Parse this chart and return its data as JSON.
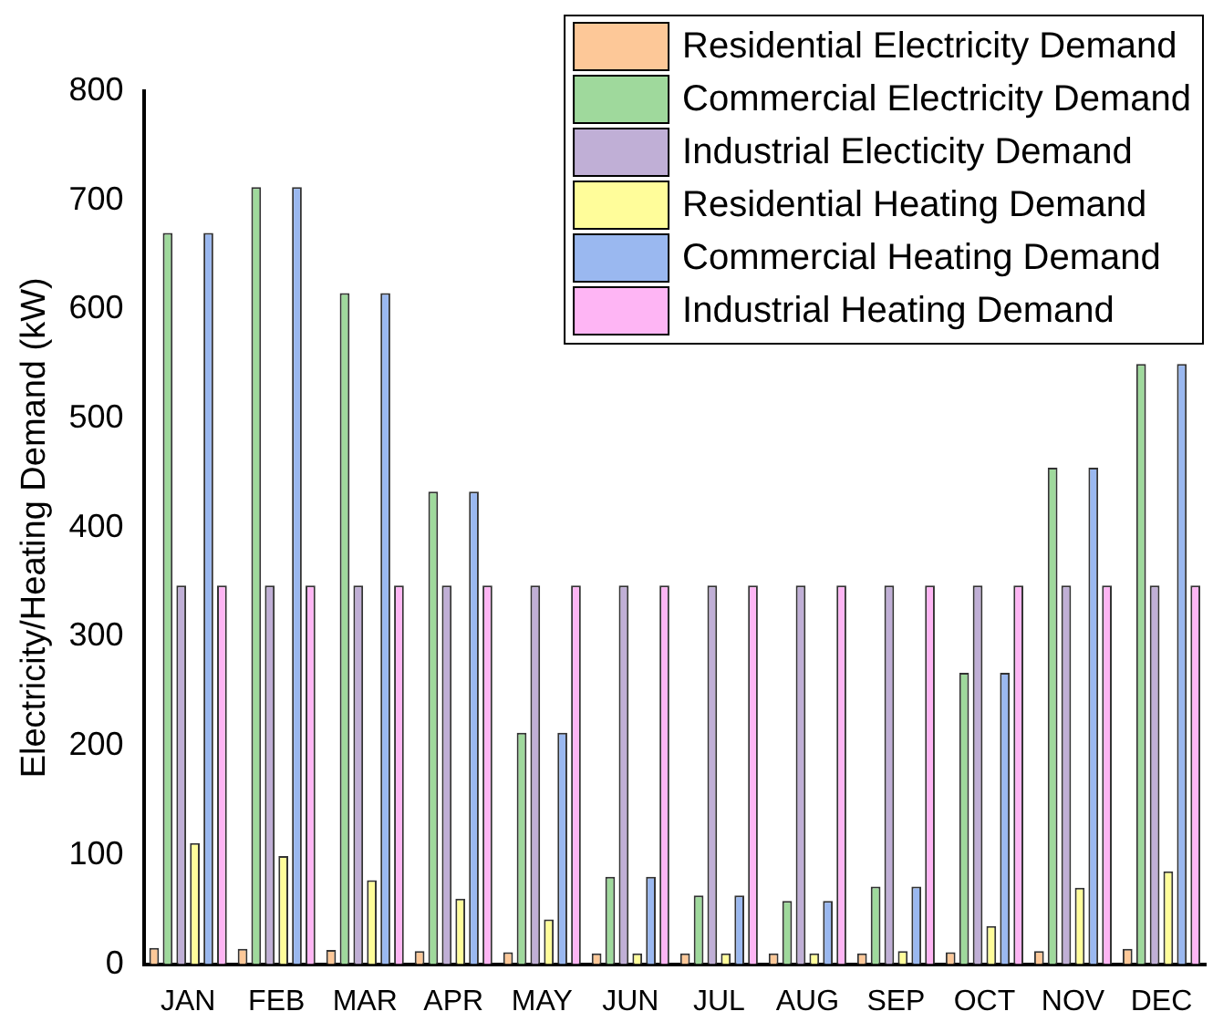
{
  "chart_data": {
    "type": "bar",
    "ylabel": "Electricity/Heating Demand (kW)",
    "categories": [
      "JAN",
      "FEB",
      "MAR",
      "APR",
      "MAY",
      "JUN",
      "JUL",
      "AUG",
      "SEP",
      "OCT",
      "NOV",
      "DEC"
    ],
    "series": [
      {
        "name": "Residential Electricity Demand",
        "color": "#fdc898",
        "values": [
          15,
          14,
          13,
          12,
          11,
          10,
          10,
          10,
          10,
          11,
          12,
          14
        ]
      },
      {
        "name": "Commercial Electricity Demand",
        "color": "#9fd99c",
        "values": [
          670,
          712,
          615,
          433,
          212,
          80,
          63,
          58,
          71,
          267,
          455,
          550
        ]
      },
      {
        "name": "Industrial Electicity Demand",
        "color": "#c0afd6",
        "values": [
          347,
          347,
          347,
          347,
          347,
          347,
          347,
          347,
          347,
          347,
          347,
          347
        ]
      },
      {
        "name": "Residential Heating Demand",
        "color": "#fffd9a",
        "values": [
          111,
          99,
          77,
          60,
          41,
          10,
          10,
          10,
          12,
          35,
          70,
          85
        ]
      },
      {
        "name": "Commercial Heating Demand",
        "color": "#9ab8f0",
        "values": [
          670,
          712,
          615,
          433,
          212,
          80,
          63,
          58,
          71,
          267,
          455,
          550
        ]
      },
      {
        "name": "Industrial Heating Demand",
        "color": "#feb5f4",
        "values": [
          347,
          347,
          347,
          347,
          347,
          347,
          347,
          347,
          347,
          347,
          347,
          347
        ]
      }
    ],
    "ylim": [
      0,
      800
    ],
    "yticks": [
      0,
      100,
      200,
      300,
      400,
      500,
      600,
      700,
      800
    ],
    "grid": false,
    "legend": "top right"
  }
}
